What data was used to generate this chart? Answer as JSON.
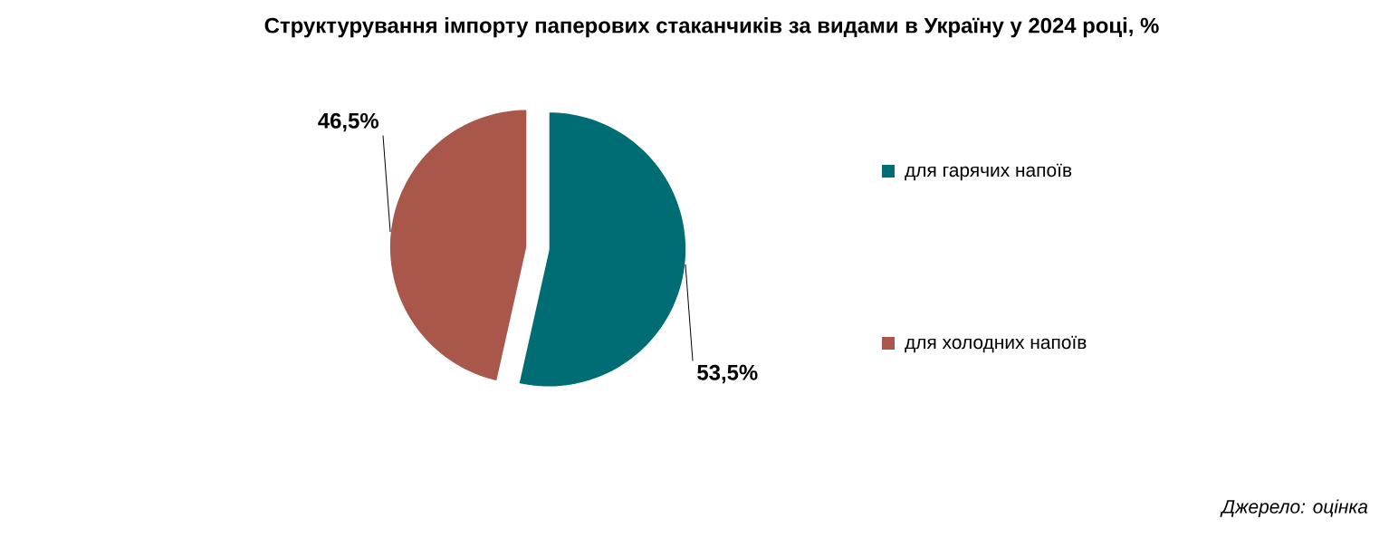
{
  "chart_data": {
    "type": "pie",
    "title": "Структурування імпорту паперових стаканчиків за видами в Україну у 2024 році, %",
    "categories": [
      "для гарячих напоїв",
      "для холодних напоїв"
    ],
    "values": [
      53.5,
      46.5
    ],
    "colors": [
      "#006d75",
      "#a9564b"
    ],
    "value_labels": [
      "53,5%",
      "46,5%"
    ],
    "legend": "right",
    "annotations": [
      "Джерело: оцінка"
    ]
  }
}
